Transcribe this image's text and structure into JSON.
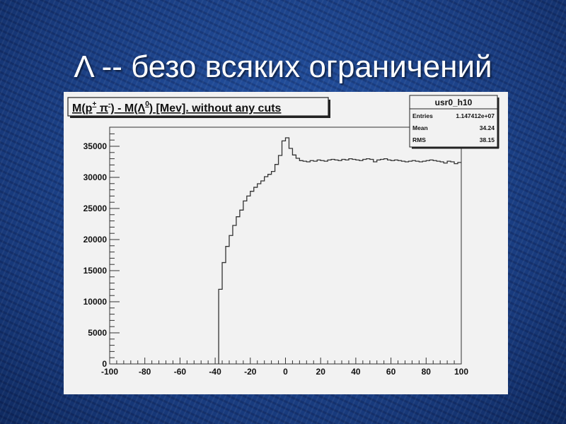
{
  "slide": {
    "title": "Λ -- безо всяких ограничений"
  },
  "colors": {
    "background": "#1b3f86",
    "canvas": "#f2f2f2",
    "line": "#333333"
  },
  "chart_data": {
    "type": "bar",
    "style": "step-histogram",
    "title": "M(p⁺ π⁻) - M(Λ⁰) [Mev]. without any cuts",
    "title_parts": {
      "a": "M(p",
      "sup1": "+",
      "b": " π",
      "sup2": "-",
      "c": ") - M(Λ",
      "sup3": "0",
      "d": ") [Mev]. without any cuts"
    },
    "xlabel": "",
    "ylabel": "",
    "xlim": [
      -100,
      100
    ],
    "ylim": [
      0,
      38000
    ],
    "xticks": [
      "-100",
      "-80",
      "-60",
      "-40",
      "-20",
      "0",
      "20",
      "40",
      "60",
      "80",
      "100"
    ],
    "yticks": [
      "0",
      "5000",
      "10000",
      "15000",
      "20000",
      "25000",
      "30000",
      "35000"
    ],
    "bin_start": -38,
    "bin_width": 2,
    "values": [
      12000,
      16300,
      18900,
      20650,
      22270,
      23670,
      24740,
      26210,
      27000,
      27760,
      28400,
      28980,
      29430,
      30110,
      30490,
      30950,
      32080,
      33520,
      35870,
      36360,
      34660,
      33600,
      33070,
      32690,
      32600,
      32500,
      32700,
      32600,
      32800,
      32700,
      32600,
      32800,
      32900,
      32800,
      32700,
      32900,
      32800,
      33000,
      32900,
      32800,
      32700,
      32900,
      33000,
      32900,
      32500,
      32800,
      32900,
      33000,
      32800,
      32700,
      32800,
      32700,
      32600,
      32500,
      32600,
      32700,
      32600,
      32500,
      32600,
      32700,
      32800,
      32700,
      32600,
      32500,
      32300,
      32600,
      32500,
      32200,
      32400
    ],
    "stats_box": {
      "name": "usr0_h10",
      "rows": [
        {
          "label": "Entries",
          "value": "1.147412e+07"
        },
        {
          "label": "Mean",
          "value": "34.24"
        },
        {
          "label": "RMS",
          "value": "38.15"
        }
      ]
    },
    "grid": false,
    "legend": "none"
  }
}
